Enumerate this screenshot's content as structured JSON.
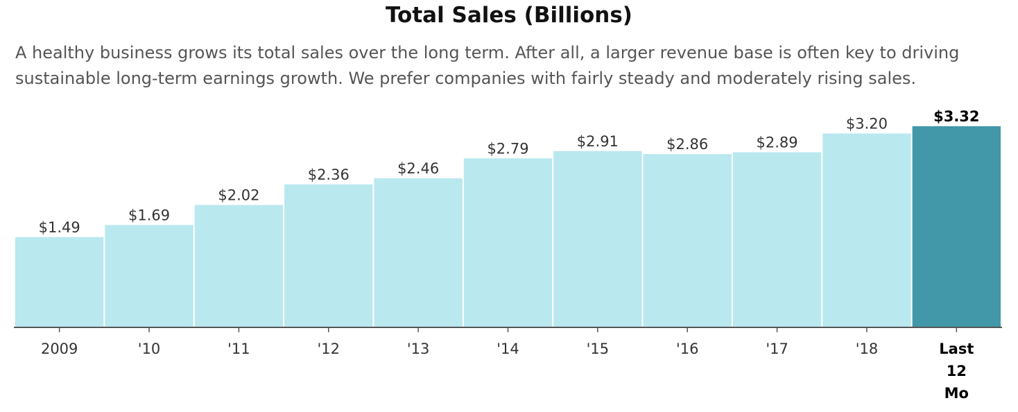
{
  "chart_data": {
    "type": "bar",
    "title": "Total Sales (Billions)",
    "subtitle": "A healthy business grows its total sales over the long term. After all, a larger revenue base is often key to driving sustainable long-term earnings growth. We prefer companies with fairly steady and moderately rising sales.",
    "categories": [
      "2009",
      "'10",
      "'11",
      "'12",
      "'13",
      "'14",
      "'15",
      "'16",
      "'17",
      "'18",
      "Last 12 Mo"
    ],
    "values": [
      1.49,
      1.69,
      2.02,
      2.36,
      2.46,
      2.79,
      2.91,
      2.86,
      2.89,
      3.2,
      3.32
    ],
    "value_labels": [
      "$1.49",
      "$1.69",
      "$2.02",
      "$2.36",
      "$2.46",
      "$2.79",
      "$2.91",
      "$2.86",
      "$2.89",
      "$3.20",
      "$3.32"
    ],
    "highlight_index": 10,
    "colors": {
      "bar": "#b9e8ef",
      "highlight": "#4297a9",
      "axis": "#555555"
    },
    "ylim": [
      0,
      3.32
    ],
    "grid": false,
    "xlabel": "",
    "ylabel": ""
  }
}
